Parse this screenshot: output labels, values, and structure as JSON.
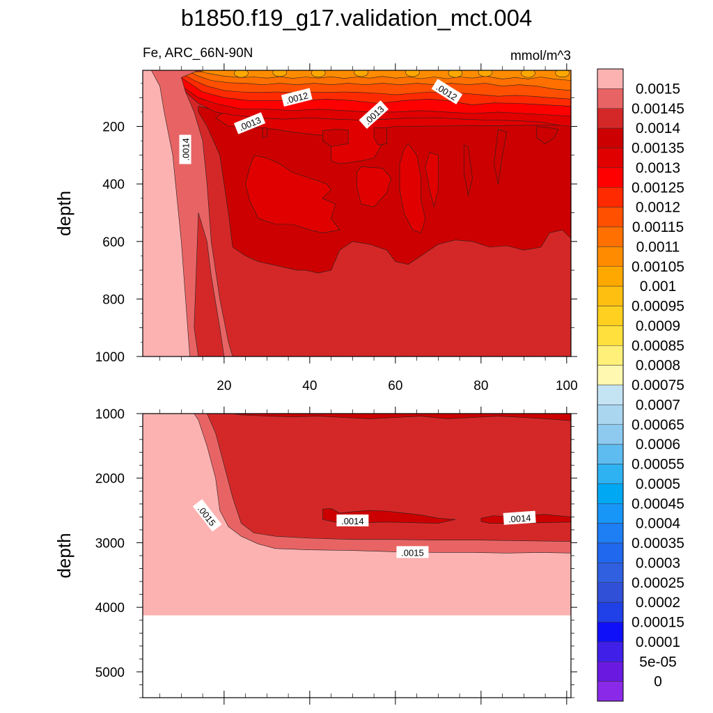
{
  "title": "b1850.f19_g17.validation_mct.004",
  "left_subtitle": "Fe, ARC_66N-90N",
  "right_subtitle": "mmol/m^3",
  "chart_data": [
    {
      "type": "heatmap",
      "panel": "top",
      "variable": "Fe",
      "region": "ARC_66N-90N",
      "units": "mmol/m^3",
      "xlabel": "",
      "ylabel": "depth",
      "xlim": [
        1,
        101
      ],
      "ylim": [
        1000,
        5
      ],
      "y_reversed": true,
      "xticks": [
        20,
        40,
        60,
        80,
        100
      ],
      "yticks": [
        200,
        400,
        600,
        800,
        1000
      ],
      "contour_labels": [
        {
          "text": ".0012",
          "x": 37,
          "y": 100
        },
        {
          "text": ".0012",
          "x": 72,
          "y": 80
        },
        {
          "text": ".0013",
          "x": 26,
          "y": 190
        },
        {
          "text": ".0013",
          "x": 55,
          "y": 160
        },
        {
          "text": ".0014",
          "x": 11,
          "y": 280
        }
      ],
      "zones": [
        {
          "level": 0.0015,
          "desc": "western edge, x<=8 near top widening to x<=12 at 1000"
        },
        {
          "level": 0.00145,
          "desc": "band x~8-15"
        },
        {
          "level": 0.0014,
          "desc": "band x~12-20 plus lower interior below ~600-700"
        },
        {
          "level": 0.00135,
          "desc": "interior 200-650"
        },
        {
          "level": 0.0013,
          "desc": "interior patches and layer near 150-200"
        },
        {
          "level": 0.0011,
          "desc": "surface layer 5-120, min ~0.00105"
        }
      ]
    },
    {
      "type": "heatmap",
      "panel": "bottom",
      "variable": "Fe",
      "xlabel": "",
      "ylabel": "depth",
      "xlim": [
        1,
        101
      ],
      "ylim": [
        5400,
        1000
      ],
      "y_reversed": true,
      "yticks": [
        1000,
        2000,
        3000,
        4000,
        5000
      ],
      "data_bottom_depth": 4125,
      "contour_labels": [
        {
          "text": ".0015",
          "x": 16,
          "y": 2580
        },
        {
          "text": ".0015",
          "x": 64,
          "y": 3150
        },
        {
          "text": ".0014",
          "x": 50,
          "y": 2660
        },
        {
          "text": ".0014",
          "x": 89,
          "y": 2620
        }
      ],
      "zones": [
        {
          "level": 0.0015,
          "desc": "west x<12 and all depths below ~3100"
        },
        {
          "level": 0.00145,
          "desc": "main body x>15, 1000-2950"
        },
        {
          "level": 0.0014,
          "desc": "thin layer near 1000 and patches near 2600"
        }
      ]
    }
  ],
  "colorbar": {
    "labels": [
      "0.0015",
      "0.00145",
      "0.0014",
      "0.00135",
      "0.0013",
      "0.00125",
      "0.0012",
      "0.00115",
      "0.0011",
      "0.00105",
      "0.001",
      "0.00095",
      "0.0009",
      "0.00085",
      "0.0008",
      "0.00075",
      "0.0007",
      "0.00065",
      "0.0006",
      "0.00055",
      "0.0005",
      "0.00045",
      "0.0004",
      "0.00035",
      "0.0003",
      "0.00025",
      "0.0002",
      "0.00015",
      "0.0001",
      "5e-05",
      "0"
    ],
    "colors": [
      "#fdb2b2",
      "#e86464",
      "#d42828",
      "#cc0000",
      "#e00000",
      "#ff0000",
      "#ff2a00",
      "#ff5000",
      "#ff7000",
      "#ff8c00",
      "#ffa800",
      "#ffbf10",
      "#ffd020",
      "#ffe03c",
      "#fff07a",
      "#fff8b0",
      "#c4e4f4",
      "#aad6f0",
      "#8ecaf0",
      "#5ebcf0",
      "#2eb2f2",
      "#00a8f4",
      "#1896f8",
      "#1e7ef4",
      "#2068ee",
      "#3060e0",
      "#3050d8",
      "#2040e8",
      "#1010f8",
      "#4020e8",
      "#6a1ae0",
      "#8a2ae8"
    ]
  }
}
